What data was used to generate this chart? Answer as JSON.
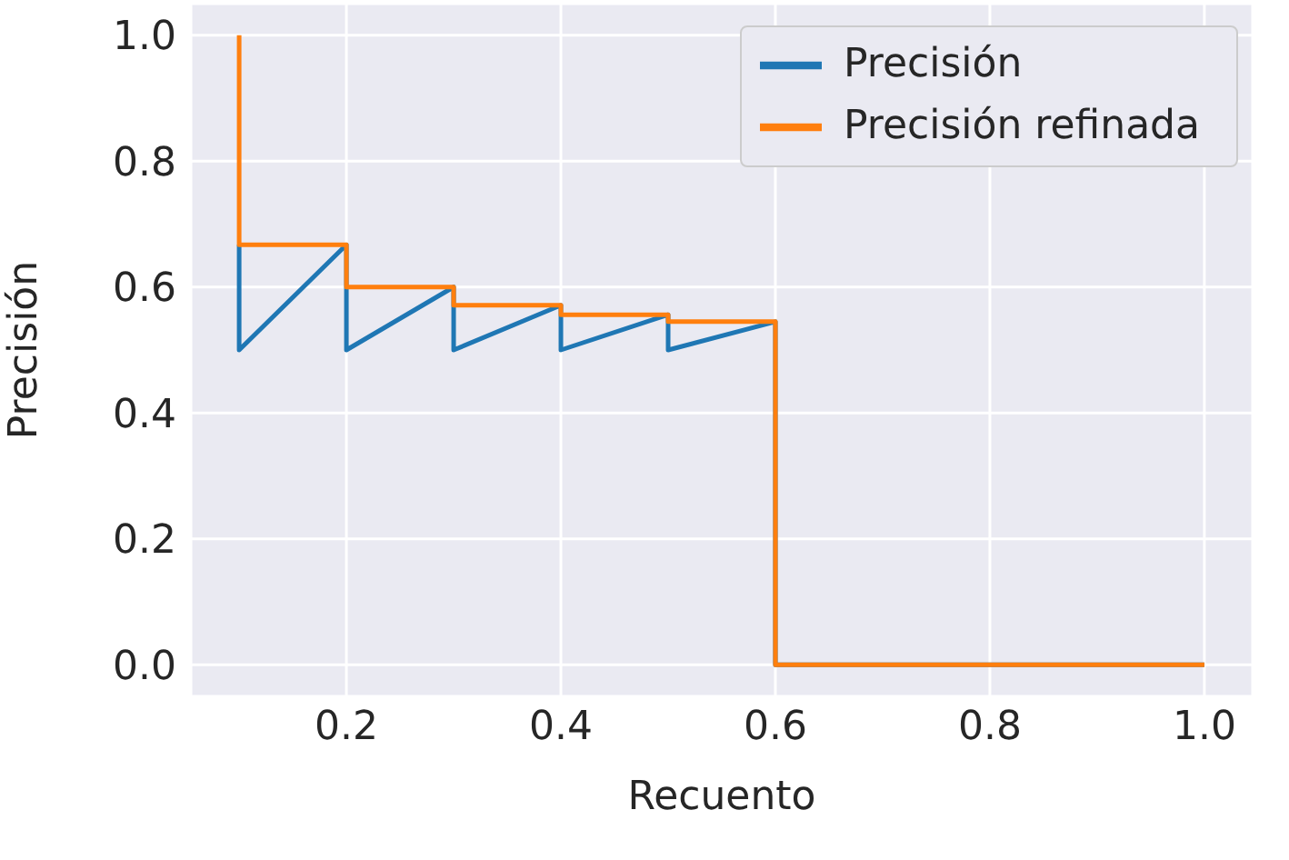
{
  "chart_data": {
    "type": "line",
    "xlabel": "Recuento",
    "ylabel": "Precisión",
    "series": [
      {
        "name": "Precisión",
        "color": "#1f77b4",
        "x": [
          0.1,
          0.1,
          0.2,
          0.2,
          0.3,
          0.3,
          0.4,
          0.4,
          0.5,
          0.5,
          0.6,
          0.6,
          1.0
        ],
        "values": [
          0.667,
          0.5,
          0.667,
          0.5,
          0.6,
          0.5,
          0.571,
          0.5,
          0.556,
          0.5,
          0.545,
          0.0,
          0.0
        ]
      },
      {
        "name": "Precisión refinada",
        "color": "#ff7f0e",
        "x": [
          0.1,
          0.1,
          0.2,
          0.2,
          0.3,
          0.3,
          0.4,
          0.4,
          0.5,
          0.5,
          0.6,
          0.6,
          1.0
        ],
        "values": [
          1.0,
          0.667,
          0.667,
          0.6,
          0.6,
          0.571,
          0.571,
          0.556,
          0.556,
          0.545,
          0.545,
          0.0,
          0.0
        ]
      }
    ],
    "xlim": [
      0.055,
      1.045
    ],
    "xticks": [
      0.2,
      0.4,
      0.6,
      0.8,
      {
        "value": 1.0,
        "label": "1.0"
      }
    ],
    "ylim": [
      -0.05,
      1.05
    ],
    "yticks": [
      {
        "value": 0,
        "label": "0.0"
      },
      0.2,
      0.4,
      0.6,
      0.8,
      {
        "value": 1.0,
        "label": "1.0"
      }
    ],
    "grid": true,
    "legend": "top right",
    "marker": "none",
    "line_style": "solid"
  }
}
